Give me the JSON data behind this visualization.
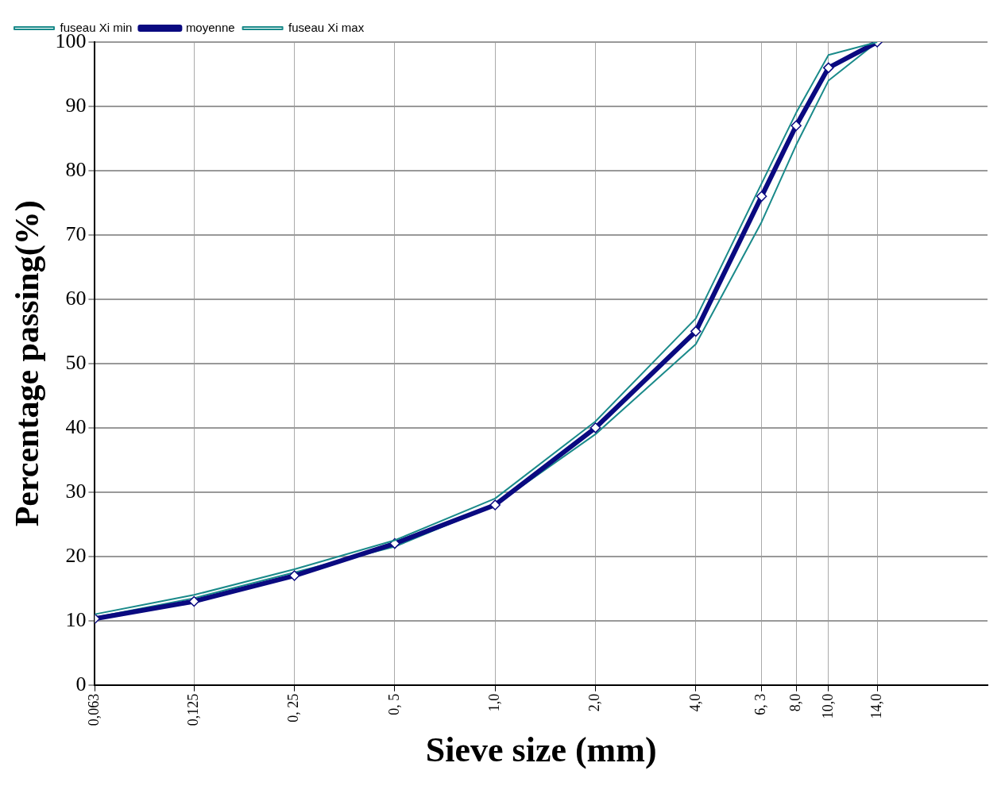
{
  "chart_data": {
    "type": "line",
    "xlabel": "Sieve size (mm)",
    "ylabel": "Percentage passing(%)",
    "log": "x",
    "xlim": [
      0.063,
      30
    ],
    "xticks": [
      {
        "value": 0.063,
        "label": "0,063"
      },
      {
        "value": 0.125,
        "label": "0,125"
      },
      {
        "value": 0.25,
        "label": "0, 25"
      },
      {
        "value": 0.5,
        "label": "0, 5"
      },
      {
        "value": 1,
        "label": "1,0"
      },
      {
        "value": 2,
        "label": "2,0"
      },
      {
        "value": 4,
        "label": "4,0"
      },
      {
        "value": 6.3,
        "label": "6, 3"
      },
      {
        "value": 8,
        "label": "8,0"
      },
      {
        "value": 10,
        "label": "10,0"
      },
      {
        "value": 14,
        "label": "14,0"
      }
    ],
    "ylim": [
      0,
      100
    ],
    "yticks": [
      0,
      10,
      20,
      30,
      40,
      50,
      60,
      70,
      80,
      90,
      100
    ],
    "grid": true,
    "legend": "top left",
    "x": [
      0.063,
      0.125,
      0.25,
      0.5,
      1,
      2,
      4,
      6.3,
      8,
      10,
      14
    ],
    "series": [
      {
        "name": "fuseau Xi min",
        "color": "#1a8a8a",
        "marker": "none",
        "values": [
          11,
          14,
          18,
          22.5,
          29,
          41,
          57,
          78,
          89,
          98,
          100
        ]
      },
      {
        "name": "moyenne",
        "color": "#0a0a80",
        "marker": "diamond",
        "values": [
          10.3,
          13,
          17,
          22,
          28,
          40,
          55,
          76,
          87,
          96,
          100
        ]
      },
      {
        "name": "fuseau Xi max",
        "color": "#1a8a8a",
        "marker": "none",
        "values": [
          10.5,
          13.5,
          17.5,
          21.5,
          28,
          39,
          53,
          72,
          84,
          94,
          100
        ]
      }
    ]
  }
}
